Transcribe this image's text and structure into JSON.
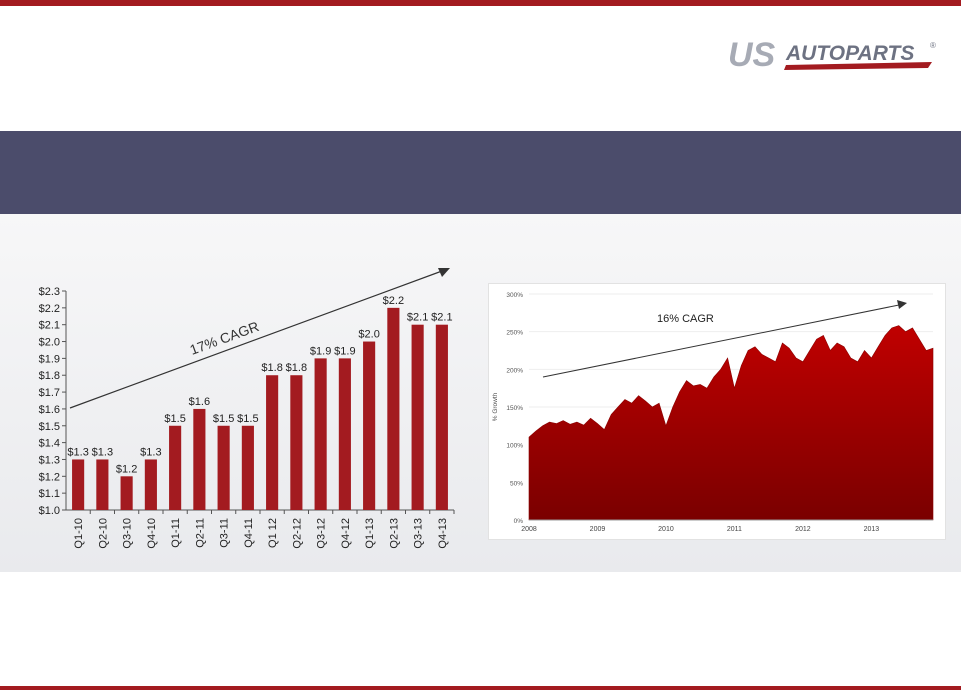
{
  "colors": {
    "accent_red": "#a31b20",
    "band": "#4b4c6b",
    "bar": "#a31b20",
    "area_top": "#c00000",
    "area_bottom": "#7a0000"
  },
  "logo": {
    "us": "US",
    "autoparts": "AUTOPARTS",
    "registered": "®"
  },
  "chart_data": [
    {
      "type": "bar",
      "categories": [
        "Q1-10",
        "Q2-10",
        "Q3-10",
        "Q4-10",
        "Q1-11",
        "Q2-11",
        "Q3-11",
        "Q4-11",
        "Q1 12",
        "Q2-12",
        "Q3-12",
        "Q4-12",
        "Q1-13",
        "Q2-13",
        "Q3-13",
        "Q4-13"
      ],
      "values": [
        1.3,
        1.3,
        1.2,
        1.3,
        1.5,
        1.6,
        1.5,
        1.5,
        1.8,
        1.8,
        1.9,
        1.9,
        2.0,
        2.2,
        2.1,
        2.1
      ],
      "value_labels": [
        "$1.3",
        "$1.3",
        "$1.2",
        "$1.3",
        "$1.5",
        "$1.6",
        "$1.5",
        "$1.5",
        "$1.8",
        "$1.8",
        "$1.9",
        "$1.9",
        "$2.0",
        "$2.2",
        "$2.1",
        "$2.1"
      ],
      "ylim": [
        1.0,
        2.3
      ],
      "y_ticks": [
        "$1.0",
        "$1.1",
        "$1.2",
        "$1.3",
        "$1.4",
        "$1.5",
        "$1.6",
        "$1.7",
        "$1.8",
        "$1.9",
        "$2.0",
        "$2.1",
        "$2.2",
        "$2.3"
      ],
      "annotation": "17% CAGR",
      "grid": false
    },
    {
      "type": "area",
      "ylabel": "% Growth",
      "ylim": [
        0,
        300
      ],
      "y_ticks": [
        "0%",
        "50%",
        "100%",
        "150%",
        "200%",
        "250%",
        "300%"
      ],
      "x_ticks": [
        "2008",
        "2009",
        "2010",
        "2011",
        "2012",
        "2013"
      ],
      "annotation": "16% CAGR",
      "x": [
        2008.0,
        2008.1,
        2008.2,
        2008.3,
        2008.4,
        2008.5,
        2008.6,
        2008.7,
        2008.8,
        2008.9,
        2009.0,
        2009.1,
        2009.2,
        2009.3,
        2009.4,
        2009.5,
        2009.6,
        2009.7,
        2009.8,
        2009.9,
        2010.0,
        2010.1,
        2010.2,
        2010.3,
        2010.4,
        2010.5,
        2010.6,
        2010.7,
        2010.8,
        2010.9,
        2011.0,
        2011.1,
        2011.2,
        2011.3,
        2011.4,
        2011.5,
        2011.6,
        2011.7,
        2011.8,
        2011.9,
        2012.0,
        2012.1,
        2012.2,
        2012.3,
        2012.4,
        2012.5,
        2012.6,
        2012.7,
        2012.8,
        2012.9,
        2013.0,
        2013.1,
        2013.2,
        2013.3,
        2013.4,
        2013.5,
        2013.6,
        2013.7,
        2013.8,
        2013.9
      ],
      "y": [
        110,
        118,
        125,
        130,
        128,
        132,
        127,
        130,
        126,
        135,
        128,
        120,
        140,
        150,
        160,
        155,
        165,
        158,
        150,
        155,
        125,
        150,
        170,
        185,
        178,
        180,
        175,
        190,
        200,
        215,
        175,
        205,
        225,
        230,
        220,
        215,
        210,
        235,
        228,
        215,
        210,
        225,
        240,
        245,
        225,
        235,
        230,
        215,
        210,
        225,
        215,
        230,
        245,
        255,
        258,
        250,
        255,
        240,
        225,
        228
      ]
    }
  ]
}
